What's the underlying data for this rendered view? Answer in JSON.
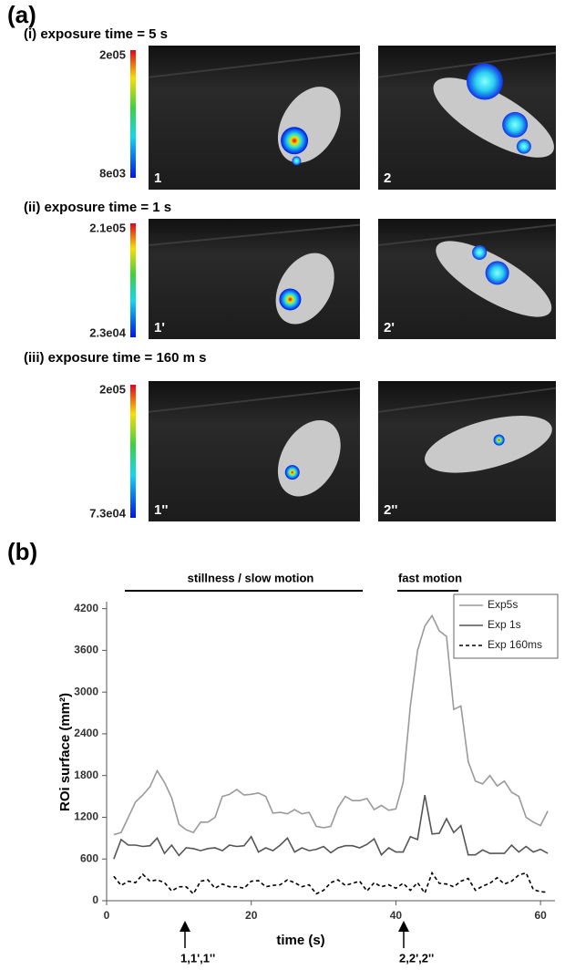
{
  "panel_a": {
    "label": "(a)",
    "rows": [
      {
        "title": "(i) exposure time = 5 s",
        "colorbar": {
          "max": "2e05",
          "min": "8e03"
        },
        "images": [
          "1",
          "2"
        ]
      },
      {
        "title": "(ii) exposure time = 1 s",
        "colorbar": {
          "max": "2.1e05",
          "min": "2.3e04"
        },
        "images": [
          "1'",
          "2'"
        ]
      },
      {
        "title": "(iii) exposure time = 160 m s",
        "colorbar": {
          "max": "2e05",
          "min": "7.3e04"
        },
        "images": [
          "1''",
          "2''"
        ]
      }
    ]
  },
  "panel_b": {
    "label": "(b)"
  },
  "chart_data": {
    "type": "line",
    "x_label": "time (s)",
    "y_label": "ROi surface (mm²)",
    "annotations": [
      "stillness / slow motion",
      "fast motion",
      "1,1',1''",
      "2,2',2''"
    ],
    "x": [
      1,
      2,
      3,
      4,
      5,
      6,
      7,
      8,
      9,
      10,
      11,
      12,
      13,
      14,
      15,
      16,
      17,
      18,
      19,
      20,
      21,
      22,
      23,
      24,
      25,
      26,
      27,
      28,
      29,
      30,
      31,
      32,
      33,
      34,
      35,
      36,
      37,
      38,
      39,
      40,
      41,
      42,
      43,
      44,
      45,
      46,
      47,
      48,
      49,
      50,
      51,
      52,
      53,
      54,
      55,
      56,
      57,
      58,
      59,
      60,
      61
    ],
    "series": [
      {
        "name": "Exp5s",
        "color": "#9a9a9a",
        "line_style": "solid",
        "values": [
          950,
          980,
          1200,
          1420,
          1520,
          1640,
          1870,
          1700,
          1480,
          1100,
          1020,
          980,
          1130,
          1130,
          1200,
          1500,
          1530,
          1600,
          1520,
          1530,
          1550,
          1500,
          1260,
          1270,
          1250,
          1310,
          1250,
          1270,
          1070,
          1050,
          1070,
          1340,
          1500,
          1440,
          1440,
          1470,
          1310,
          1370,
          1300,
          1320,
          1700,
          2800,
          3600,
          3950,
          4100,
          3880,
          3800,
          2750,
          2800,
          2000,
          1720,
          1680,
          1800,
          1650,
          1720,
          1560,
          1500,
          1200,
          1130,
          1080,
          1290
        ]
      },
      {
        "name": "Exp 1s",
        "color": "#555555",
        "line_style": "solid",
        "values": [
          600,
          880,
          800,
          800,
          780,
          790,
          900,
          680,
          800,
          650,
          760,
          750,
          720,
          750,
          760,
          720,
          800,
          780,
          790,
          920,
          700,
          760,
          720,
          800,
          900,
          700,
          760,
          720,
          740,
          780,
          690,
          760,
          790,
          790,
          760,
          810,
          890,
          660,
          760,
          700,
          700,
          920,
          880,
          1520,
          960,
          970,
          1180,
          980,
          1080,
          660,
          660,
          730,
          680,
          680,
          680,
          800,
          700,
          780,
          700,
          740,
          680
        ]
      },
      {
        "name": "Exp 160ms",
        "color": "#000000",
        "line_style": "dashed",
        "values": [
          350,
          220,
          280,
          260,
          380,
          280,
          300,
          260,
          140,
          200,
          200,
          100,
          280,
          300,
          180,
          240,
          200,
          200,
          180,
          280,
          290,
          200,
          220,
          230,
          300,
          260,
          200,
          230,
          100,
          150,
          260,
          300,
          220,
          250,
          280,
          140,
          260,
          200,
          230,
          180,
          250,
          150,
          260,
          110,
          400,
          250,
          240,
          200,
          280,
          320,
          150,
          210,
          250,
          330,
          240,
          280,
          370,
          400,
          160,
          130,
          120
        ]
      }
    ],
    "xlim": [
      0,
      62
    ],
    "xticks": [
      0,
      20,
      40,
      60
    ],
    "ylim": [
      0,
      4300
    ],
    "yticks": [
      0,
      600,
      1200,
      1800,
      2400,
      3000,
      3600,
      4200
    ],
    "legend": "upper right"
  }
}
